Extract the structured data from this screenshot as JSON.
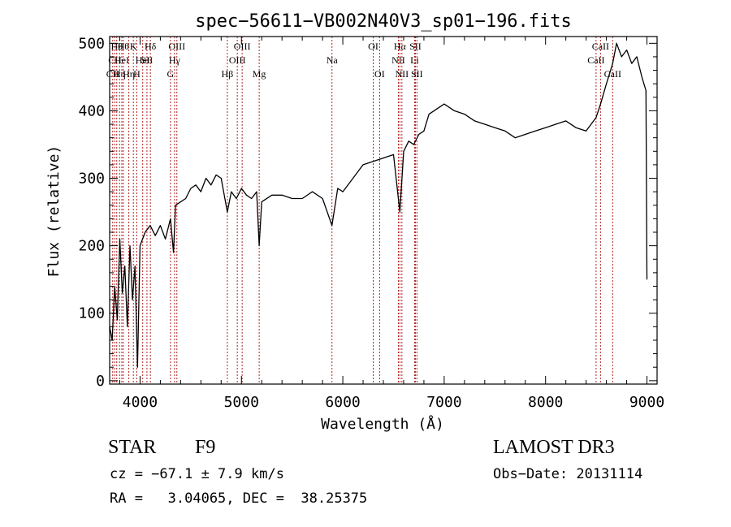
{
  "chart_data": {
    "type": "line",
    "title": "spec−56611−VB002N40V3_sp01−196.fits",
    "xlabel": "Wavelength (Å)",
    "ylabel": "Flux (relative)",
    "xlim": [
      3700,
      9100
    ],
    "ylim": [
      -5,
      510
    ],
    "xticks": [
      4000,
      5000,
      6000,
      7000,
      8000,
      9000
    ],
    "yticks": [
      0,
      100,
      200,
      300,
      400,
      500
    ],
    "grid": false,
    "series": [
      {
        "name": "flux",
        "color": "#000000",
        "x": [
          3700,
          3725,
          3750,
          3775,
          3800,
          3825,
          3850,
          3875,
          3900,
          3925,
          3950,
          3975,
          4000,
          4050,
          4100,
          4150,
          4200,
          4250,
          4300,
          4330,
          4350,
          4400,
          4450,
          4500,
          4550,
          4600,
          4650,
          4700,
          4750,
          4800,
          4861,
          4900,
          4950,
          5000,
          5050,
          5100,
          5150,
          5175,
          5200,
          5300,
          5400,
          5500,
          5600,
          5700,
          5800,
          5893,
          5950,
          6000,
          6100,
          6200,
          6300,
          6400,
          6500,
          6563,
          6600,
          6650,
          6700,
          6750,
          6800,
          6850,
          6900,
          7000,
          7100,
          7200,
          7300,
          7400,
          7500,
          7600,
          7700,
          7800,
          7900,
          8000,
          8100,
          8200,
          8300,
          8400,
          8498,
          8542,
          8600,
          8662,
          8700,
          8750,
          8800,
          8850,
          8900,
          8950,
          8990,
          9000
        ],
        "y": [
          80,
          60,
          140,
          90,
          210,
          130,
          170,
          80,
          200,
          120,
          170,
          20,
          200,
          220,
          230,
          215,
          230,
          210,
          240,
          190,
          260,
          265,
          270,
          285,
          290,
          280,
          300,
          290,
          305,
          300,
          250,
          280,
          270,
          285,
          275,
          270,
          280,
          200,
          265,
          275,
          275,
          270,
          270,
          280,
          270,
          230,
          285,
          280,
          300,
          320,
          325,
          330,
          335,
          250,
          340,
          355,
          350,
          365,
          370,
          395,
          400,
          410,
          400,
          395,
          385,
          380,
          375,
          370,
          360,
          365,
          370,
          375,
          380,
          385,
          375,
          370,
          390,
          410,
          440,
          470,
          500,
          480,
          490,
          470,
          480,
          450,
          430,
          150
        ]
      }
    ],
    "lines": [
      {
        "wl": 3730,
        "label": "CII",
        "row": 3
      },
      {
        "wl": 3750,
        "label": "CII",
        "row": 2
      },
      {
        "wl": 3770,
        "label": "Hθ",
        "row": 1
      },
      {
        "wl": 3798,
        "label": "Hη",
        "row": 3
      },
      {
        "wl": 3820,
        "label": "HeI",
        "row": 2
      },
      {
        "wl": 3835,
        "label": "Hθ",
        "row": 1
      },
      {
        "wl": 3889,
        "label": "Hη",
        "row": 3
      },
      {
        "wl": 3934,
        "label": "K",
        "row": 1
      },
      {
        "wl": 3968,
        "label": "H",
        "row": 3
      },
      {
        "wl": 4026,
        "label": "HeI",
        "row": 2
      },
      {
        "wl": 4068,
        "label": "SII",
        "row": 2
      },
      {
        "wl": 4102,
        "label": "Hδ",
        "row": 1
      },
      {
        "wl": 4300,
        "label": "G",
        "row": 3
      },
      {
        "wl": 4340,
        "label": "Hγ",
        "row": 2
      },
      {
        "wl": 4363,
        "label": "OIII",
        "row": 1
      },
      {
        "wl": 4861,
        "label": "Hβ",
        "row": 3
      },
      {
        "wl": 4959,
        "label": "OIII",
        "row": 2
      },
      {
        "wl": 5007,
        "label": "OIII",
        "row": 1
      },
      {
        "wl": 5175,
        "label": "Mg",
        "row": 3
      },
      {
        "wl": 5893,
        "label": "Na",
        "row": 2
      },
      {
        "wl": 6300,
        "label": "OI",
        "row": 1
      },
      {
        "wl": 6363,
        "label": "OI",
        "row": 3
      },
      {
        "wl": 6548,
        "label": "NII",
        "row": 2
      },
      {
        "wl": 6563,
        "label": "Hα",
        "row": 1
      },
      {
        "wl": 6583,
        "label": "NII",
        "row": 3
      },
      {
        "wl": 6708,
        "label": "Li",
        "row": 2
      },
      {
        "wl": 6716,
        "label": "SII",
        "row": 1
      },
      {
        "wl": 6731,
        "label": "SII",
        "row": 3
      },
      {
        "wl": 8498,
        "label": "CaII",
        "row": 2
      },
      {
        "wl": 8542,
        "label": "CaII",
        "row": 1
      },
      {
        "wl": 8662,
        "label": "CaII",
        "row": 3
      }
    ]
  },
  "info": {
    "object_class": "STAR",
    "subclass": "F9",
    "survey": "LAMOST DR3",
    "redshift": "cz = −67.1 ± 7.9 km/s",
    "obs_date": "Obs−Date: 20131114",
    "coords": "RA =   3.04065, DEC =  38.25375"
  }
}
